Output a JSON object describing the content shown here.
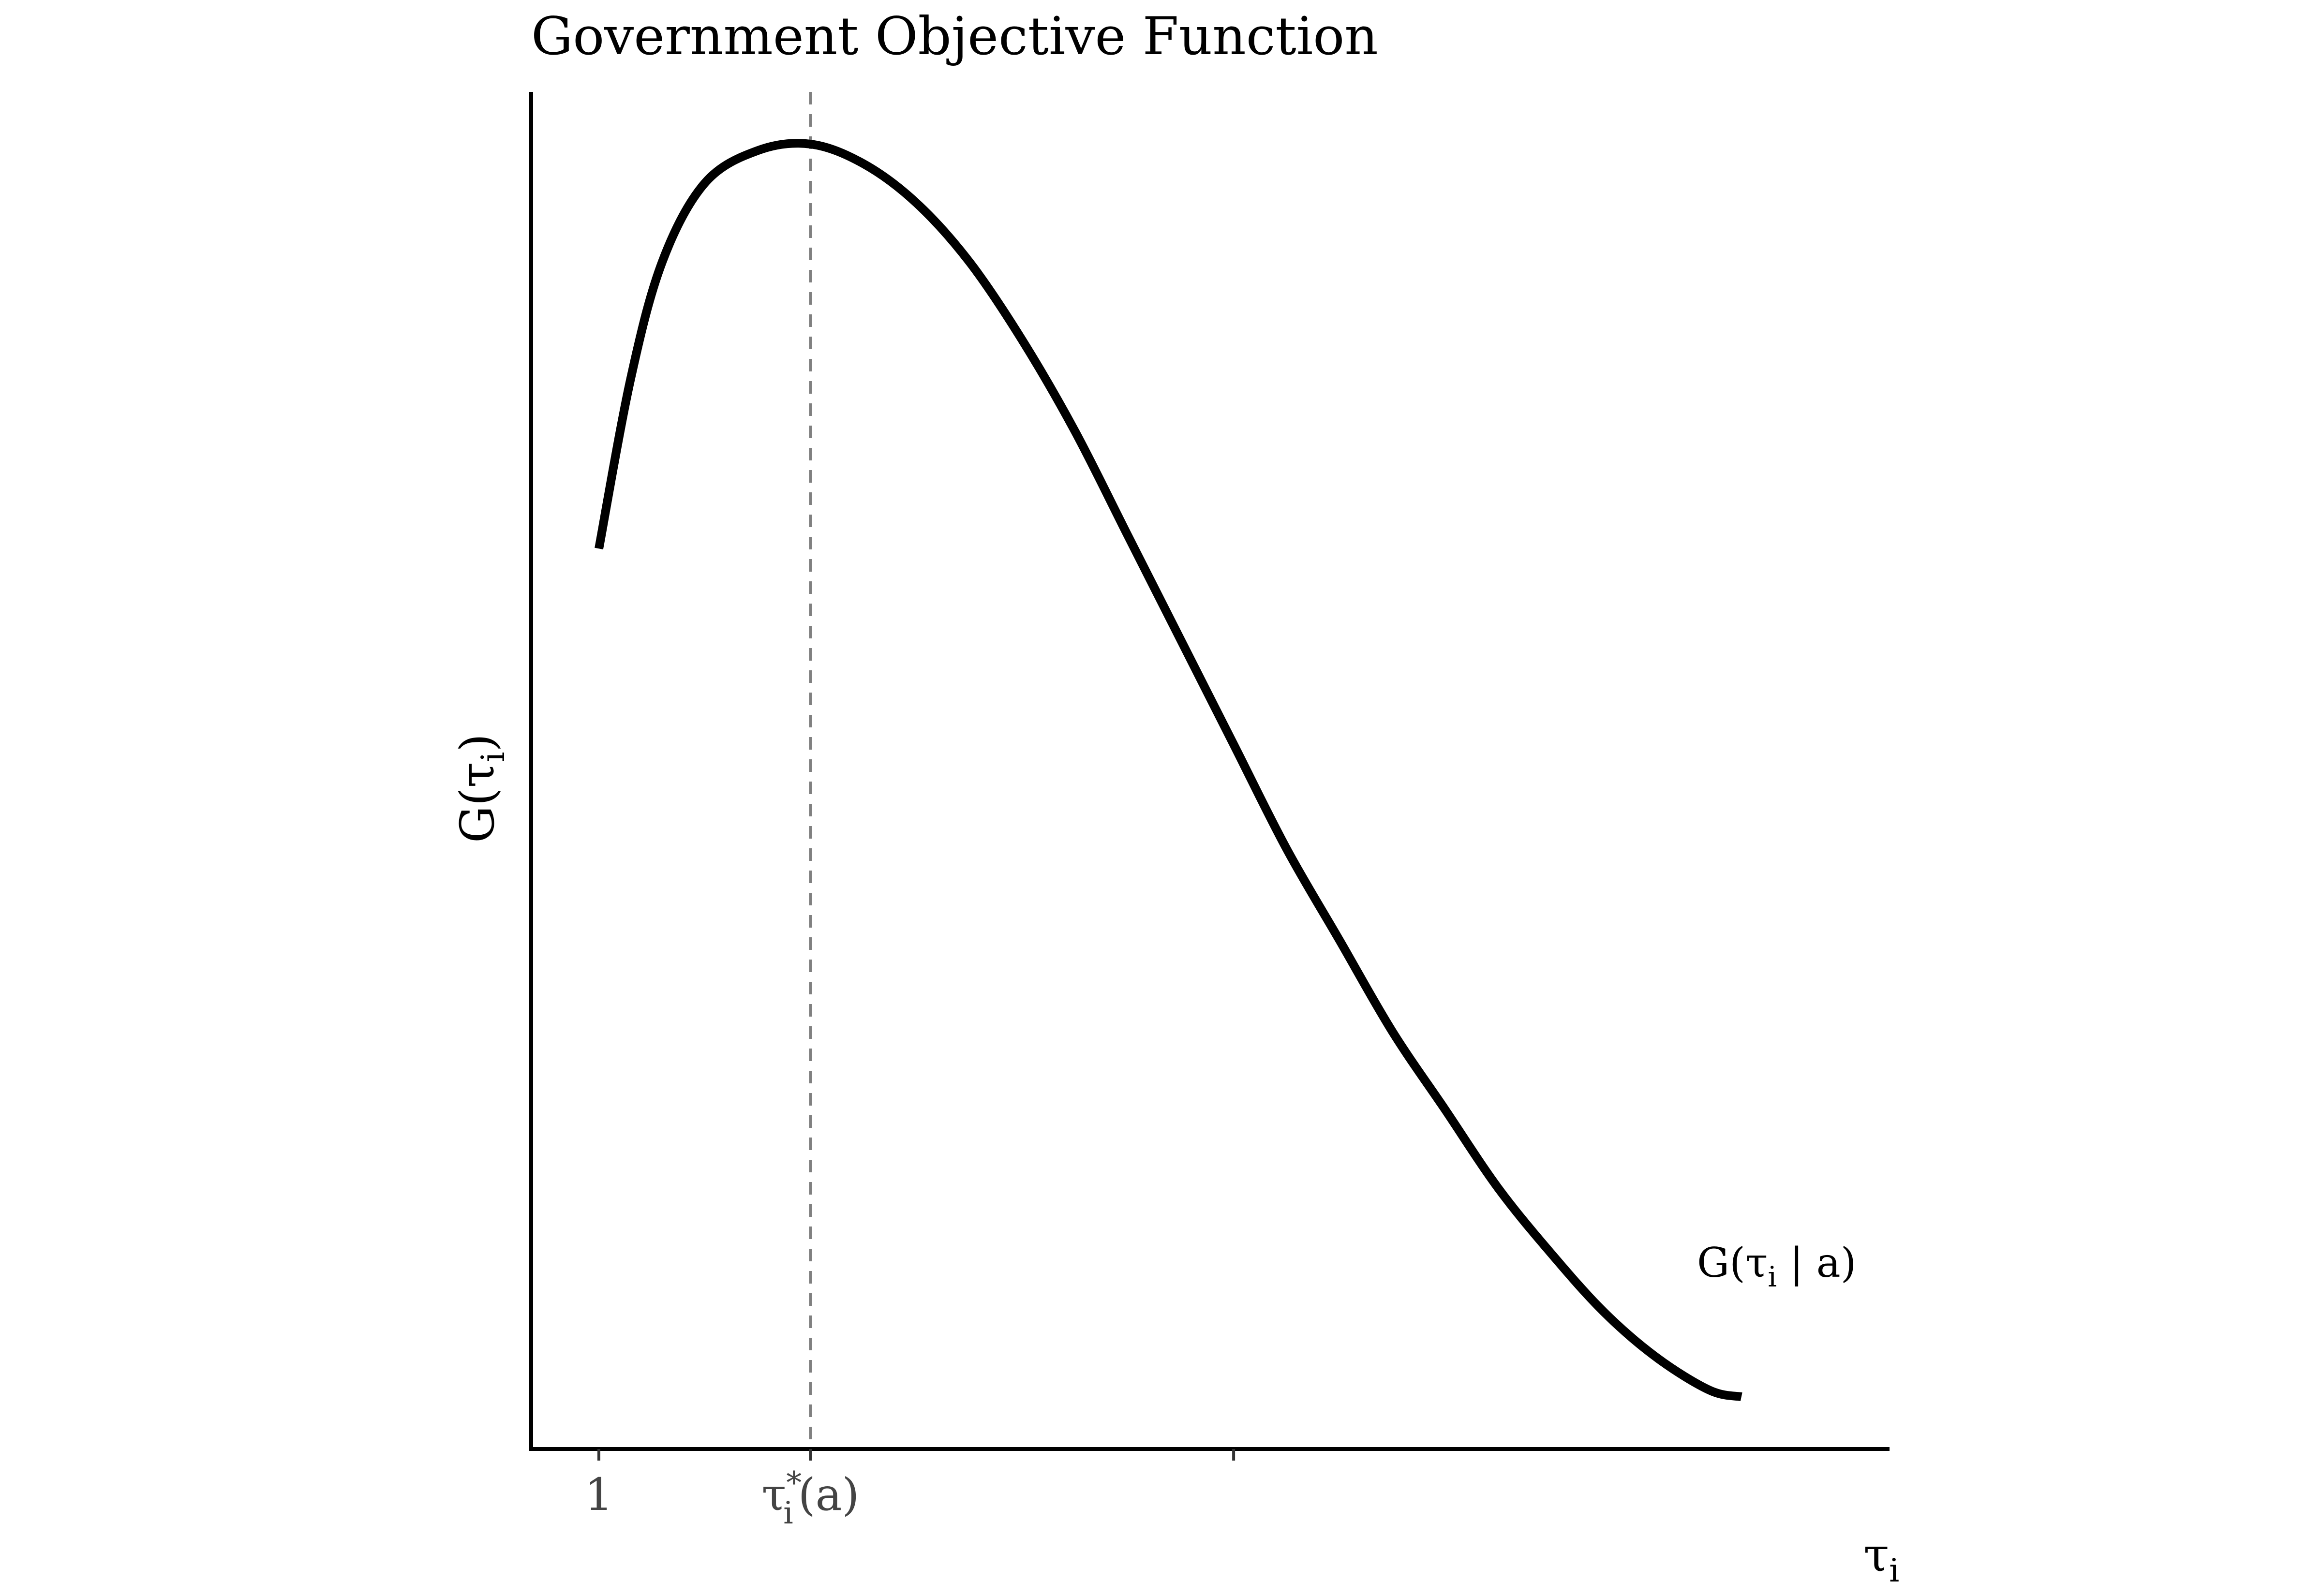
{
  "chart_data": {
    "type": "line",
    "title": "Government Objective Function",
    "xlabel": {
      "base": "τ",
      "sub": "i"
    },
    "ylabel": {
      "base": "G(τ",
      "sub": "i",
      "close": ")"
    },
    "x_ticks": [
      {
        "value": 1,
        "label": "1"
      },
      {
        "value": 2,
        "label": {
          "base": "τ",
          "sub": "i",
          "sup": "*",
          "tail": "(a)"
        }
      },
      {
        "value": 4,
        "label": ""
      }
    ],
    "vertical_marker": {
      "x": 2,
      "style": "dashed",
      "color": "#808080"
    },
    "series": [
      {
        "name": {
          "base": "G(τ",
          "sub": "i",
          "mid": " | a)"
        },
        "color": "#000000",
        "points": [
          [
            1.0,
            0.69
          ],
          [
            1.15,
            0.82
          ],
          [
            1.3,
            0.91
          ],
          [
            1.5,
            0.97
          ],
          [
            1.75,
            0.995
          ],
          [
            2.0,
            1.0
          ],
          [
            2.25,
            0.985
          ],
          [
            2.5,
            0.955
          ],
          [
            2.75,
            0.91
          ],
          [
            3.0,
            0.85
          ],
          [
            3.25,
            0.78
          ],
          [
            3.5,
            0.7
          ],
          [
            3.75,
            0.62
          ],
          [
            4.0,
            0.54
          ],
          [
            4.25,
            0.46
          ],
          [
            4.5,
            0.39
          ],
          [
            4.75,
            0.32
          ],
          [
            5.0,
            0.26
          ],
          [
            5.25,
            0.2
          ],
          [
            5.5,
            0.15
          ],
          [
            5.75,
            0.105
          ],
          [
            6.0,
            0.07
          ],
          [
            6.25,
            0.045
          ],
          [
            6.4,
            0.04
          ]
        ]
      }
    ],
    "xlim": [
      0.68,
      7.1
    ],
    "ylim": [
      0,
      1.04
    ],
    "grid": false,
    "legend": "none"
  }
}
